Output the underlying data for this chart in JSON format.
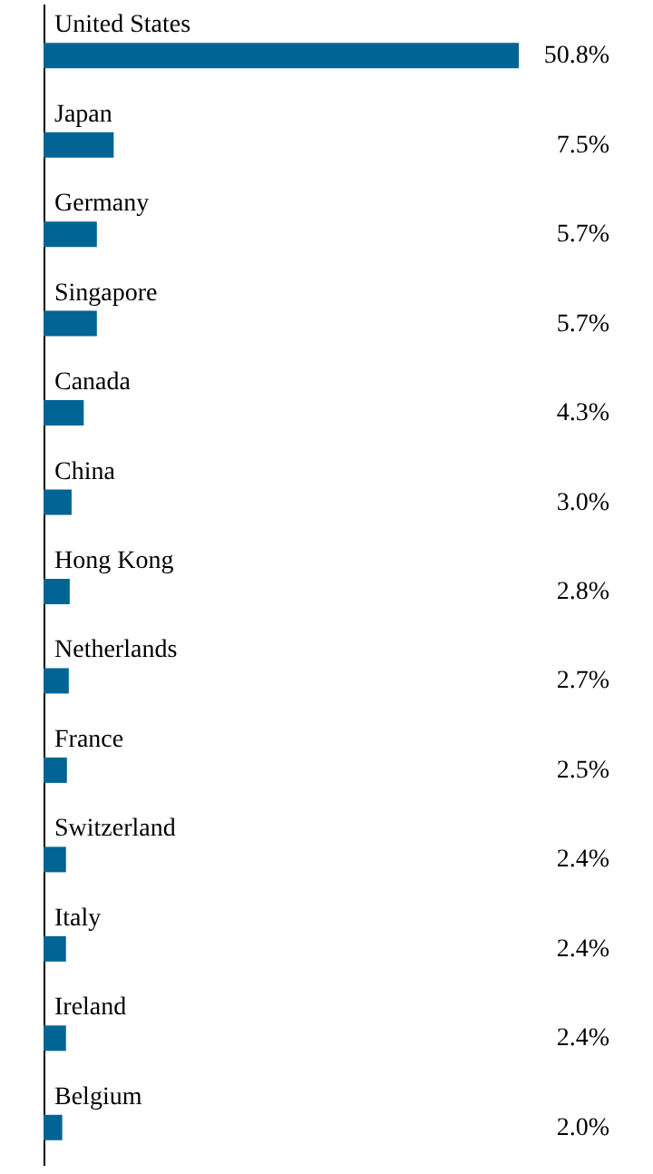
{
  "chart_data": {
    "type": "bar",
    "orientation": "horizontal",
    "categories": [
      "United States",
      "Japan",
      "Germany",
      "Singapore",
      "Canada",
      "China",
      "Hong Kong",
      "Netherlands",
      "France",
      "Switzerland",
      "Italy",
      "Ireland",
      "Belgium"
    ],
    "values": [
      50.8,
      7.5,
      5.7,
      5.7,
      4.3,
      3.0,
      2.8,
      2.7,
      2.5,
      2.4,
      2.4,
      2.4,
      2.0
    ],
    "value_labels": [
      "50.8%",
      "7.5%",
      "5.7%",
      "5.7%",
      "4.3%",
      "3.0%",
      "2.8%",
      "2.7%",
      "2.5%",
      "2.4%",
      "2.4%",
      "2.4%",
      "2.0%"
    ],
    "color": "#006494",
    "tick_labels": false
  }
}
